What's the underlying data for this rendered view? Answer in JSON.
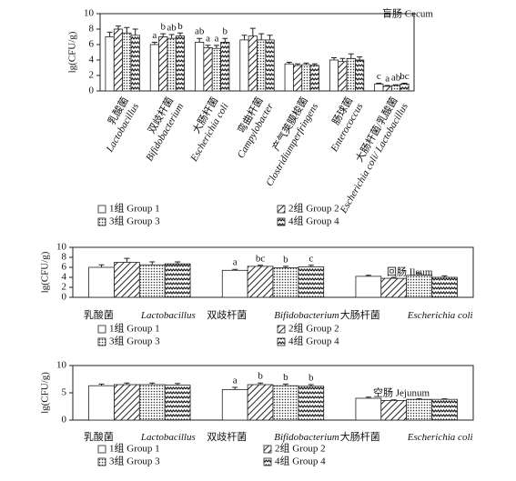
{
  "chart_data": [
    {
      "type": "bar",
      "title": "盲肠 Cecum",
      "ylabel": "lg(CFU/g)",
      "categories": [
        "乳酸菌",
        "双歧杆菌",
        "大肠杆菌",
        "弯曲杆菌",
        "产气荚膜梭菌",
        "肠球菌",
        "大肠杆菌/乳酸菌"
      ],
      "categories_latin": [
        "Lactobacillus",
        "Bifidobacterium",
        "Escherichia coli",
        "Campylobacter",
        "Clostridiumperfringens",
        "Enterococcus",
        "Escherichia coli/ Lactobacillus"
      ],
      "ylim": [
        0,
        10
      ],
      "yticks": [
        0,
        2,
        4,
        6,
        8,
        10
      ],
      "series": [
        {
          "name": "1组 Group 1",
          "pattern": "none",
          "values": [
            7.0,
            6.0,
            6.3,
            6.6,
            3.5,
            4.0,
            0.9
          ],
          "errors": [
            0.6,
            0.3,
            0.5,
            0.6,
            0.2,
            0.3,
            0.1
          ],
          "letters": [
            null,
            "a",
            "ab",
            null,
            null,
            null,
            "c"
          ]
        },
        {
          "name": "2组 Group 2",
          "pattern": "diagonal",
          "values": [
            8.0,
            7.0,
            5.6,
            7.1,
            3.3,
            3.8,
            0.6
          ],
          "errors": [
            0.4,
            0.4,
            0.3,
            1.0,
            0.2,
            0.4,
            0.1
          ],
          "letters": [
            null,
            "b",
            "a",
            null,
            null,
            null,
            "a"
          ]
        },
        {
          "name": "3组 Group 3",
          "pattern": "dots",
          "values": [
            7.5,
            6.8,
            5.5,
            6.6,
            3.4,
            4.2,
            0.7
          ],
          "errors": [
            0.7,
            0.5,
            0.4,
            0.8,
            0.2,
            0.6,
            0.1
          ],
          "letters": [
            null,
            "ab",
            "a",
            null,
            null,
            null,
            "ab"
          ]
        },
        {
          "name": "4组 Group 4",
          "pattern": "waves",
          "values": [
            7.2,
            7.1,
            6.3,
            6.6,
            3.3,
            4.0,
            0.9
          ],
          "errors": [
            0.8,
            0.4,
            0.5,
            0.6,
            0.2,
            0.4,
            0.1
          ],
          "letters": [
            null,
            "b",
            "b",
            null,
            null,
            null,
            "bc"
          ]
        }
      ]
    },
    {
      "type": "bar",
      "title": "回肠 Ileum",
      "ylabel": "lg(CFU/g)",
      "categories": [
        "乳酸菌",
        "双歧杆菌",
        "大肠杆菌"
      ],
      "categories_latin": [
        "Lactobacillus",
        "Bifidobacterium",
        "Escherichia coli"
      ],
      "ylim": [
        0,
        10
      ],
      "yticks": [
        0,
        2,
        4,
        6,
        8,
        10
      ],
      "series": [
        {
          "name": "1组 Group 1",
          "pattern": "none",
          "values": [
            6.0,
            5.4,
            4.2
          ],
          "errors": [
            0.5,
            0.2,
            0.2
          ],
          "letters": [
            null,
            "a",
            null
          ]
        },
        {
          "name": "2组 Group 2",
          "pattern": "diagonal",
          "values": [
            7.0,
            6.2,
            3.8
          ],
          "errors": [
            0.8,
            0.2,
            0.2
          ],
          "letters": [
            null,
            "bc",
            null
          ]
        },
        {
          "name": "3组 Group 3",
          "pattern": "dots",
          "values": [
            6.5,
            5.9,
            4.4
          ],
          "errors": [
            0.6,
            0.3,
            0.4
          ],
          "letters": [
            null,
            "b",
            null
          ]
        },
        {
          "name": "4组 Group 4",
          "pattern": "waves",
          "values": [
            6.7,
            6.1,
            4.0
          ],
          "errors": [
            0.4,
            0.3,
            0.3
          ],
          "letters": [
            null,
            "c",
            null
          ]
        }
      ]
    },
    {
      "type": "bar",
      "title": "空肠 Jejunum",
      "ylabel": "lg(CFU/g)",
      "categories": [
        "乳酸菌",
        "双歧杆菌",
        "大肠杆菌"
      ],
      "categories_latin": [
        "Lactobacillus",
        "Bifidobacterium",
        "Escherichia coli"
      ],
      "ylim": [
        0,
        10
      ],
      "yticks": [
        0,
        5,
        10
      ],
      "series": [
        {
          "name": "1组 Group 1",
          "pattern": "none",
          "values": [
            6.3,
            5.6,
            4.0
          ],
          "errors": [
            0.3,
            0.4,
            0.2
          ],
          "letters": [
            null,
            "a",
            null
          ]
        },
        {
          "name": "2组 Group 2",
          "pattern": "diagonal",
          "values": [
            6.5,
            6.5,
            3.6
          ],
          "errors": [
            0.3,
            0.3,
            0.1
          ],
          "letters": [
            null,
            "b",
            null
          ]
        },
        {
          "name": "3组 Group 3",
          "pattern": "dots",
          "values": [
            6.5,
            6.3,
            3.8
          ],
          "errors": [
            0.3,
            0.3,
            0.1
          ],
          "letters": [
            null,
            "b",
            null
          ]
        },
        {
          "name": "4组 Group 4",
          "pattern": "waves",
          "values": [
            6.4,
            6.2,
            3.8
          ],
          "errors": [
            0.3,
            0.3,
            0.1
          ],
          "letters": [
            null,
            "b",
            null
          ]
        }
      ]
    }
  ]
}
